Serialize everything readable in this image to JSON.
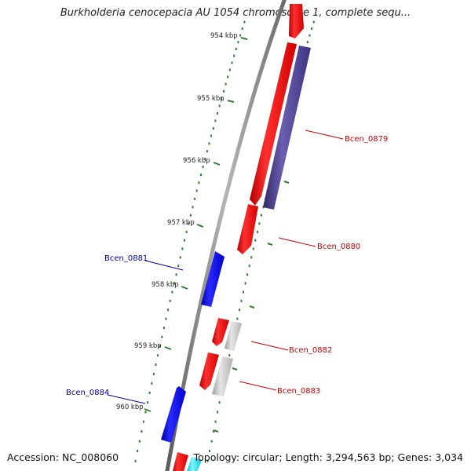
{
  "title": "Burkholderia cenocepacia AU 1054 chromosome 1, complete sequ...",
  "footer": {
    "accession": "Accession: NC_008060",
    "summary": "Topology: circular; Length: 3,294,563 bp; Genes: 3,034"
  },
  "colors": {
    "backbone": "#888888",
    "tick": "#2e7d32",
    "forward_gene": "#ff0000",
    "reverse_gene": "#0000ee",
    "grey_gene": "#bdbdbd",
    "purple_gene": "#4b3f8f",
    "cyan_gene": "#00e5ff",
    "forward_label": "#cc0000",
    "reverse_label": "#0000aa"
  },
  "ruler": [
    "954 kbp",
    "955 kbp",
    "956 kbp",
    "957 kbp",
    "958 kbp",
    "959 kbp",
    "960 kbp"
  ],
  "gene_labels": [
    {
      "name": "Bcen_0879",
      "strand": "forward"
    },
    {
      "name": "Bcen_0880",
      "strand": "forward"
    },
    {
      "name": "Bcen_0881",
      "strand": "reverse"
    },
    {
      "name": "Bcen_0882",
      "strand": "forward"
    },
    {
      "name": "Bcen_0883",
      "strand": "forward"
    },
    {
      "name": "Bcen_0884",
      "strand": "reverse"
    }
  ]
}
